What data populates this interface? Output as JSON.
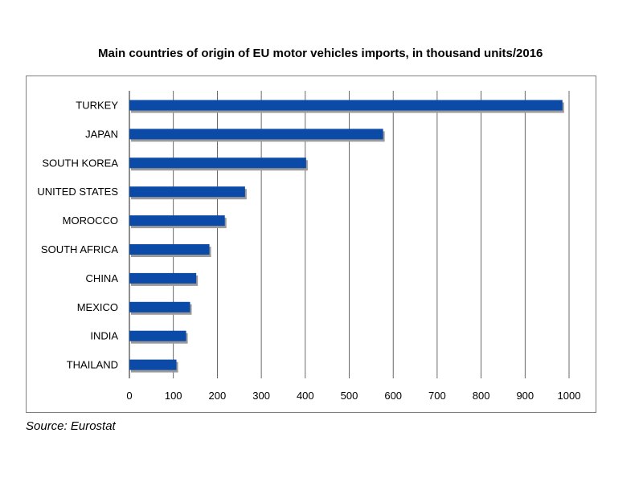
{
  "title": "Main countries of origin of EU motor vehicles imports, in thousand units/2016",
  "source": "Source: Eurostat",
  "colors": {
    "bar": "#0b4aa6",
    "bar_shadow": "#9a9a9a",
    "grid": "#444444",
    "frame": "#7f7f7f"
  },
  "chart_data": {
    "type": "bar",
    "orientation": "horizontal",
    "title": "Main countries of origin of EU motor vehicles imports, in thousand units/2016",
    "xlabel": "",
    "ylabel": "",
    "categories": [
      "TURKEY",
      "JAPAN",
      "SOUTH KOREA",
      "UNITED STATES",
      "MOROCCO",
      "SOUTH AFRICA",
      "CHINA",
      "MEXICO",
      "INDIA",
      "THAILAND"
    ],
    "values": [
      985,
      577,
      402,
      263,
      217,
      182,
      152,
      138,
      129,
      107
    ],
    "xlim": [
      0,
      1000
    ],
    "xticks": [
      "0",
      "100",
      "200",
      "300",
      "400",
      "500",
      "600",
      "700",
      "800",
      "900",
      "1000"
    ],
    "grid": "vertical",
    "legend": "none"
  }
}
